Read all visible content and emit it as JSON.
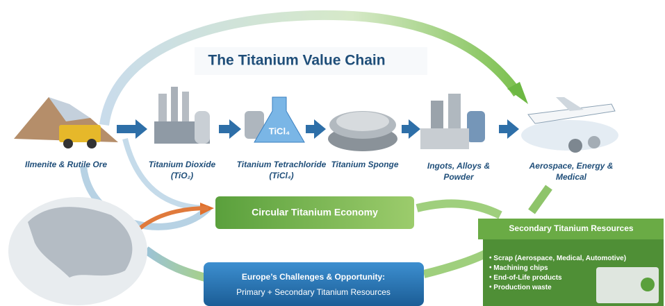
{
  "title": "The Titanium Value Chain",
  "stages": [
    {
      "label": [
        "Ilmenite & Rutile Ore"
      ]
    },
    {
      "label": [
        "Titanium Dioxide",
        "(TiO₂)"
      ]
    },
    {
      "label": [
        "Titanium Tetrachloride",
        "(TiCl₄)"
      ]
    },
    {
      "label": [
        "Titanium Sponge"
      ]
    },
    {
      "label": [
        "Ingots, Alloys &",
        "Powder"
      ]
    },
    {
      "label": [
        "Aerospace, Energy &",
        "Medical"
      ]
    }
  ],
  "flask_label": "TiCl₄",
  "circular_economy": "Circular Titanium Economy",
  "secondary_resources": {
    "title": "Secondary Titanium Resources",
    "items": [
      "Scrap (Aerospace, Medical, Automotive)",
      "Machining chips",
      "End-of-Life products",
      "Production waste"
    ]
  },
  "europe": {
    "title": "Europe’s Challenges & Opportunity:",
    "subtitle": "Primary + Secondary Titanium Resources"
  }
}
